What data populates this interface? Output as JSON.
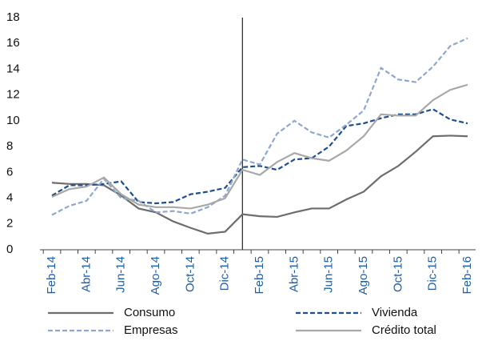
{
  "chart_data": {
    "type": "line",
    "categories": [
      "Feb-14",
      null,
      "Abr-14",
      null,
      "Jun-14",
      null,
      "Ago-14",
      null,
      "Oct-14",
      null,
      "Dic-14",
      null,
      "Feb-15",
      null,
      "Abr-15",
      null,
      "Jun-15",
      null,
      "Ago-15",
      null,
      "Oct-15",
      null,
      "Dic-15",
      null,
      "Feb-16"
    ],
    "series": [
      {
        "name": "Consumo",
        "color": "#6d6d6d",
        "dash": false,
        "values": [
          5.2,
          5.1,
          5.1,
          5.0,
          4.2,
          3.2,
          2.9,
          2.2,
          1.7,
          1.25,
          1.4,
          2.75,
          2.6,
          2.55,
          2.9,
          3.2,
          3.2,
          3.9,
          4.5,
          5.7,
          6.5,
          7.6,
          8.8,
          8.85,
          8.8
        ]
      },
      {
        "name": "Vivienda",
        "color": "#1f4e8c",
        "dash": true,
        "values": [
          4.2,
          5.0,
          5.0,
          5.1,
          5.3,
          3.7,
          3.6,
          3.7,
          4.3,
          4.5,
          4.8,
          6.4,
          6.5,
          6.2,
          7.0,
          7.1,
          8.0,
          9.6,
          9.8,
          10.2,
          10.5,
          10.5,
          10.9,
          10.1,
          9.8
        ]
      },
      {
        "name": "Empresas",
        "color": "#8fa7d0",
        "dash": true,
        "values": [
          2.7,
          3.4,
          3.8,
          5.5,
          4.0,
          3.8,
          2.9,
          3.0,
          2.8,
          3.3,
          4.2,
          7.0,
          6.6,
          9.0,
          10.0,
          9.1,
          8.7,
          9.7,
          10.8,
          14.1,
          13.2,
          13.0,
          14.2,
          15.8,
          16.4
        ]
      },
      {
        "name": "Crédito total",
        "color": "#a8a8a8",
        "dash": false,
        "values": [
          4.1,
          4.7,
          4.9,
          5.6,
          4.3,
          3.5,
          3.3,
          3.3,
          3.2,
          3.5,
          4.0,
          6.2,
          5.8,
          6.8,
          7.5,
          7.1,
          6.9,
          7.7,
          8.8,
          10.5,
          10.4,
          10.4,
          11.6,
          12.4,
          12.8
        ]
      }
    ],
    "ylim": [
      0,
      18
    ],
    "yticks": [
      0,
      2,
      4,
      6,
      8,
      10,
      12,
      14,
      16,
      18
    ],
    "grid": false
  }
}
